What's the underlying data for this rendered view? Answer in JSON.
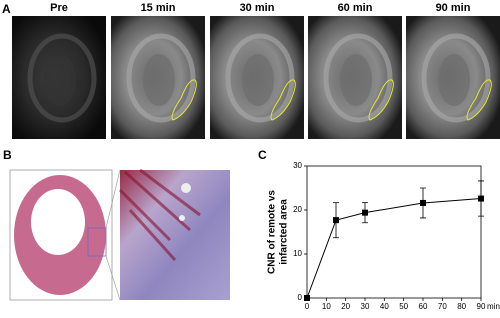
{
  "panel_labels": [
    "A",
    "B",
    "C"
  ],
  "mri_labels": [
    "Pre",
    "15 min",
    "30 min",
    "60 min",
    "90 min"
  ],
  "chart_data": {
    "type": "line",
    "x": [
      0,
      15,
      30,
      60,
      90
    ],
    "series": [
      {
        "values": [
          0,
          17.7,
          19.4,
          21.6,
          22.6
        ],
        "errors": [
          0,
          4,
          2.3,
          3.4,
          4
        ],
        "color": "#000000"
      }
    ],
    "x_label": "min",
    "y_label": [
      "CNR of remote vs",
      "infarcted area"
    ],
    "xlim": [
      0,
      90
    ],
    "xticks": [
      0,
      10,
      20,
      30,
      40,
      50,
      60,
      70,
      80,
      90
    ],
    "ylim": [
      0,
      30
    ],
    "yticks": [
      0,
      10,
      20,
      30
    ]
  }
}
